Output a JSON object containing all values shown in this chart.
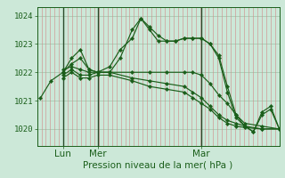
{
  "title": "",
  "xlabel": "Pression niveau de la mer( hPa )",
  "bg_color": "#cce8d8",
  "plot_bg_color": "#cce8d8",
  "line_color": "#1a5e1a",
  "grid_color_h": "#a8c8b0",
  "grid_color_v_minor": "#d08888",
  "grid_color_v_major": "#2a4a2a",
  "ylim": [
    1019.4,
    1024.3
  ],
  "xlim": [
    0,
    14
  ],
  "yticks": [
    1020,
    1021,
    1022,
    1023,
    1024
  ],
  "xtick_positions": [
    1.5,
    3.5,
    9.5
  ],
  "xtick_labels": [
    "Lun",
    "Mer",
    "Mar"
  ],
  "major_vlines": [
    1.5,
    3.5,
    9.5
  ],
  "num_minor_vlines": 56,
  "series": [
    {
      "x": [
        0.2,
        0.8,
        1.5,
        2.0,
        2.5,
        3.0,
        3.5,
        4.2,
        4.8,
        5.5,
        6.0,
        6.5,
        7.0,
        7.5,
        8.0,
        8.5,
        9.0,
        9.5,
        10.0,
        10.5,
        11.0,
        11.5,
        12.0,
        12.5,
        13.0,
        13.5,
        14.0
      ],
      "y": [
        1021.1,
        1021.7,
        1022.0,
        1022.5,
        1022.8,
        1022.1,
        1022.0,
        1022.2,
        1022.8,
        1023.2,
        1023.9,
        1023.6,
        1023.3,
        1023.1,
        1023.1,
        1023.2,
        1023.2,
        1023.2,
        1023.0,
        1022.6,
        1021.5,
        1020.5,
        1020.1,
        1019.9,
        1020.6,
        1020.8,
        1020.0
      ]
    },
    {
      "x": [
        1.5,
        2.0,
        2.5,
        3.0,
        3.5,
        4.2,
        4.8,
        5.5,
        6.0,
        6.5,
        7.0,
        7.5,
        8.0,
        8.5,
        9.0,
        9.5,
        10.0,
        10.5,
        11.0,
        11.5,
        12.0,
        12.5,
        13.0,
        13.5,
        14.0
      ],
      "y": [
        1022.0,
        1022.3,
        1022.5,
        1022.1,
        1022.0,
        1022.0,
        1022.5,
        1023.5,
        1023.9,
        1023.5,
        1023.1,
        1023.1,
        1023.1,
        1023.2,
        1023.2,
        1023.2,
        1023.0,
        1022.5,
        1021.3,
        1020.4,
        1020.1,
        1019.9,
        1020.5,
        1020.7,
        1020.0
      ]
    },
    {
      "x": [
        1.5,
        2.0,
        2.5,
        3.0,
        3.5,
        4.2,
        5.5,
        6.5,
        7.5,
        8.5,
        9.0,
        9.5,
        10.0,
        10.5,
        11.0,
        11.5,
        12.0,
        13.0,
        14.0
      ],
      "y": [
        1022.1,
        1022.2,
        1022.1,
        1022.0,
        1022.0,
        1022.0,
        1022.0,
        1022.0,
        1022.0,
        1022.0,
        1022.0,
        1021.9,
        1021.6,
        1021.2,
        1020.9,
        1020.5,
        1020.2,
        1020.1,
        1020.0
      ]
    },
    {
      "x": [
        1.5,
        2.0,
        2.5,
        3.0,
        3.5,
        4.2,
        5.5,
        6.5,
        7.5,
        8.5,
        9.0,
        9.5,
        10.0,
        10.5,
        11.0,
        11.5,
        12.0,
        13.0,
        14.0
      ],
      "y": [
        1021.9,
        1022.1,
        1021.9,
        1021.9,
        1022.0,
        1022.0,
        1021.8,
        1021.7,
        1021.6,
        1021.5,
        1021.3,
        1021.1,
        1020.8,
        1020.5,
        1020.3,
        1020.2,
        1020.1,
        1020.0,
        1020.0
      ]
    },
    {
      "x": [
        1.5,
        2.0,
        2.5,
        3.0,
        3.5,
        4.2,
        5.5,
        6.5,
        7.5,
        8.5,
        9.0,
        9.5,
        10.0,
        10.5,
        11.0,
        11.5,
        12.0,
        13.0,
        14.0
      ],
      "y": [
        1021.8,
        1022.0,
        1021.8,
        1021.8,
        1021.9,
        1021.9,
        1021.7,
        1021.5,
        1021.4,
        1021.3,
        1021.1,
        1020.9,
        1020.7,
        1020.4,
        1020.2,
        1020.1,
        1020.05,
        1020.0,
        1020.0
      ]
    }
  ]
}
